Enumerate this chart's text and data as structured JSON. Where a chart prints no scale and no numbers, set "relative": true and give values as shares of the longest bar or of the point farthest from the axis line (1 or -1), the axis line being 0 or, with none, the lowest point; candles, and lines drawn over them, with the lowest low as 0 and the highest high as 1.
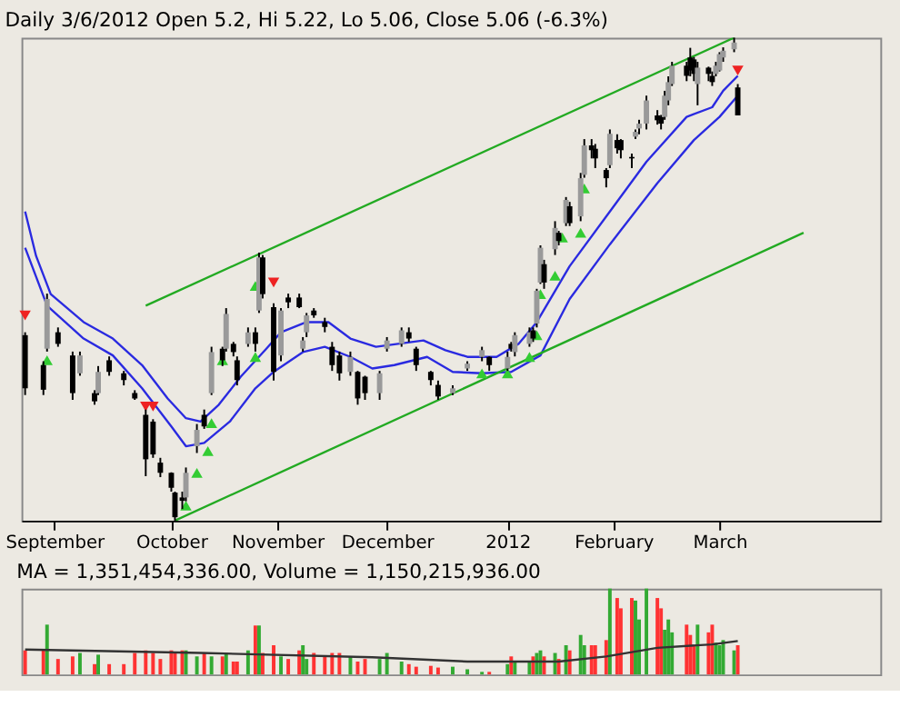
{
  "chart_data": [
    {
      "type": "candlestick",
      "title": "Daily 3/6/2012 Open 5.2, Hi 5.22, Lo 5.06, Close 5.06 (-6.3%)",
      "relative": true,
      "grid": false,
      "xlim": [
        "2011-08-23",
        "2012-04-14"
      ],
      "xticks": [
        {
          "value": "2011-09-01",
          "label": "September"
        },
        {
          "value": "2011-10-03",
          "label": "October"
        },
        {
          "value": "2011-11-01",
          "label": "November"
        },
        {
          "value": "2011-12-01",
          "label": "December"
        },
        {
          "value": "2012-01-03",
          "label": "2012"
        },
        {
          "value": "2012-02-01",
          "label": "February"
        },
        {
          "value": "2012-03-01",
          "label": "March"
        }
      ],
      "x": [
        "2011-08-24",
        "2011-08-29",
        "2011-08-30",
        "2011-09-02",
        "2011-09-06",
        "2011-09-08",
        "2011-09-12",
        "2011-09-13",
        "2011-09-16",
        "2011-09-20",
        "2011-09-23",
        "2011-09-26",
        "2011-09-28",
        "2011-09-30",
        "2011-10-03",
        "2011-10-04",
        "2011-10-06",
        "2011-10-07",
        "2011-10-10",
        "2011-10-12",
        "2011-10-14",
        "2011-10-17",
        "2011-10-18",
        "2011-10-20",
        "2011-10-21",
        "2011-10-24",
        "2011-10-26",
        "2011-10-27",
        "2011-10-28",
        "2011-10-31",
        "2011-11-02",
        "2011-11-04",
        "2011-11-07",
        "2011-11-08",
        "2011-11-09",
        "2011-11-11",
        "2011-11-14",
        "2011-11-16",
        "2011-11-18",
        "2011-11-21",
        "2011-11-23",
        "2011-11-25",
        "2011-11-29",
        "2011-12-01",
        "2011-12-05",
        "2011-12-07",
        "2011-12-09",
        "2011-12-13",
        "2011-12-15",
        "2011-12-19",
        "2011-12-23",
        "2011-12-27",
        "2011-12-29",
        "2012-01-03",
        "2012-01-04",
        "2012-01-05",
        "2012-01-09",
        "2012-01-10",
        "2012-01-11",
        "2012-01-12",
        "2012-01-13",
        "2012-01-16",
        "2012-01-17",
        "2012-01-19",
        "2012-01-20",
        "2012-01-23",
        "2012-01-24",
        "2012-01-26",
        "2012-01-27",
        "2012-01-30",
        "2012-01-31",
        "2012-02-02",
        "2012-02-03",
        "2012-02-06",
        "2012-02-07",
        "2012-02-08",
        "2012-02-10",
        "2012-02-13",
        "2012-02-14",
        "2012-02-15",
        "2012-02-16",
        "2012-02-17",
        "2012-02-21",
        "2012-02-22",
        "2012-02-23",
        "2012-02-24",
        "2012-02-27",
        "2012-02-28",
        "2012-02-29",
        "2012-03-01",
        "2012-03-02",
        "2012-03-05",
        "2012-03-06"
      ],
      "ohlc": [
        [
          0.384,
          0.39,
          0.26,
          0.274
        ],
        [
          0.322,
          0.33,
          0.26,
          0.271
        ],
        [
          0.356,
          0.47,
          0.35,
          0.459
        ],
        [
          0.39,
          0.4,
          0.36,
          0.366
        ],
        [
          0.342,
          0.35,
          0.25,
          0.264
        ],
        [
          0.305,
          0.35,
          0.3,
          0.342
        ],
        [
          0.264,
          0.27,
          0.24,
          0.247
        ],
        [
          0.264,
          0.32,
          0.26,
          0.308
        ],
        [
          0.332,
          0.34,
          0.3,
          0.308
        ],
        [
          0.305,
          0.31,
          0.28,
          0.291
        ],
        [
          0.264,
          0.27,
          0.25,
          0.253
        ],
        [
          0.219,
          0.23,
          0.092,
          0.127
        ],
        [
          0.205,
          0.21,
          0.13,
          0.137
        ],
        [
          0.12,
          0.13,
          0.09,
          0.099
        ],
        [
          0.099,
          0.1,
          0.06,
          0.068
        ],
        [
          0.058,
          0.06,
          0.0,
          0.007
        ],
        [
          0.048,
          0.06,
          0.024,
          0.041
        ],
        [
          0.048,
          0.11,
          0.04,
          0.099
        ],
        [
          0.154,
          0.2,
          0.14,
          0.188
        ],
        [
          0.219,
          0.23,
          0.19,
          0.195
        ],
        [
          0.264,
          0.36,
          0.26,
          0.349
        ],
        [
          0.356,
          0.36,
          0.32,
          0.332
        ],
        [
          0.356,
          0.44,
          0.35,
          0.428
        ],
        [
          0.366,
          0.37,
          0.34,
          0.349
        ],
        [
          0.332,
          0.34,
          0.28,
          0.291
        ],
        [
          0.366,
          0.4,
          0.36,
          0.39
        ],
        [
          0.39,
          0.4,
          0.35,
          0.366
        ],
        [
          0.435,
          0.555,
          0.43,
          0.545
        ],
        [
          0.545,
          0.55,
          0.46,
          0.469
        ],
        [
          0.442,
          0.45,
          0.29,
          0.308
        ],
        [
          0.342,
          0.44,
          0.33,
          0.435
        ],
        [
          0.462,
          0.47,
          0.44,
          0.452
        ],
        [
          0.462,
          0.47,
          0.44,
          0.442
        ],
        [
          0.356,
          0.38,
          0.35,
          0.373
        ],
        [
          0.39,
          0.43,
          0.38,
          0.425
        ],
        [
          0.435,
          0.44,
          0.42,
          0.425
        ],
        [
          0.411,
          0.42,
          0.39,
          0.401
        ],
        [
          0.36,
          0.37,
          0.31,
          0.322
        ],
        [
          0.342,
          0.35,
          0.29,
          0.305
        ],
        [
          0.308,
          0.35,
          0.3,
          0.339
        ],
        [
          0.308,
          0.31,
          0.24,
          0.253
        ],
        [
          0.298,
          0.3,
          0.25,
          0.264
        ],
        [
          0.264,
          0.31,
          0.25,
          0.305
        ],
        [
          0.356,
          0.38,
          0.35,
          0.373
        ],
        [
          0.366,
          0.4,
          0.36,
          0.394
        ],
        [
          0.39,
          0.4,
          0.37,
          0.377
        ],
        [
          0.356,
          0.36,
          0.31,
          0.322
        ],
        [
          0.308,
          0.31,
          0.28,
          0.291
        ],
        [
          0.281,
          0.29,
          0.25,
          0.257
        ],
        [
          0.264,
          0.28,
          0.26,
          0.274
        ],
        [
          0.315,
          0.33,
          0.31,
          0.325
        ],
        [
          0.339,
          0.36,
          0.33,
          0.353
        ],
        [
          0.339,
          0.34,
          0.31,
          0.322
        ],
        [
          0.315,
          0.35,
          0.31,
          0.339
        ],
        [
          0.366,
          0.37,
          0.35,
          0.356
        ],
        [
          0.349,
          0.39,
          0.34,
          0.384
        ],
        [
          0.366,
          0.4,
          0.36,
          0.39
        ],
        [
          0.394,
          0.4,
          0.37,
          0.377
        ],
        [
          0.408,
          0.48,
          0.4,
          0.476
        ],
        [
          0.493,
          0.57,
          0.49,
          0.565
        ],
        [
          0.531,
          0.54,
          0.48,
          0.493
        ],
        [
          0.562,
          0.62,
          0.55,
          0.606
        ],
        [
          0.596,
          0.6,
          0.57,
          0.579
        ],
        [
          0.616,
          0.67,
          0.61,
          0.664
        ],
        [
          0.651,
          0.66,
          0.61,
          0.616
        ],
        [
          0.63,
          0.72,
          0.62,
          0.709
        ],
        [
          0.716,
          0.79,
          0.71,
          0.777
        ],
        [
          0.777,
          0.79,
          0.75,
          0.767
        ],
        [
          0.77,
          0.78,
          0.73,
          0.75
        ],
        [
          0.726,
          0.73,
          0.69,
          0.709
        ],
        [
          0.736,
          0.81,
          0.73,
          0.801
        ],
        [
          0.788,
          0.8,
          0.76,
          0.771
        ],
        [
          0.788,
          0.79,
          0.75,
          0.767
        ],
        [
          0.753,
          0.76,
          0.73,
          0.75
        ],
        [
          0.795,
          0.81,
          0.79,
          0.805
        ],
        [
          0.812,
          0.83,
          0.8,
          0.822
        ],
        [
          0.822,
          0.88,
          0.81,
          0.87
        ],
        [
          0.839,
          0.85,
          0.82,
          0.829
        ],
        [
          0.836,
          0.84,
          0.81,
          0.822
        ],
        [
          0.836,
          0.89,
          0.83,
          0.88
        ],
        [
          0.87,
          0.92,
          0.86,
          0.908
        ],
        [
          0.904,
          0.95,
          0.9,
          0.942
        ],
        [
          0.942,
          0.95,
          0.91,
          0.921
        ],
        [
          0.959,
          0.979,
          0.92,
          0.932
        ],
        [
          0.955,
          0.96,
          0.91,
          0.925
        ],
        [
          0.904,
          0.95,
          0.86,
          0.938
        ],
        [
          0.938,
          0.94,
          0.91,
          0.925
        ],
        [
          0.921,
          0.93,
          0.9,
          0.908
        ],
        [
          0.925,
          0.95,
          0.92,
          0.942
        ],
        [
          0.932,
          0.97,
          0.93,
          0.966
        ],
        [
          0.959,
          0.98,
          0.95,
          0.973
        ],
        [
          0.976,
          1.0,
          0.97,
          0.99
        ],
        [
          0.897,
          0.904,
          0.839,
          0.839
        ]
      ],
      "series": [
        {
          "type": "line",
          "color": "#2a2ae0",
          "x": [
            "2011-08-24",
            "2011-08-27",
            "2011-08-31",
            "2011-09-09",
            "2011-09-17",
            "2011-09-25",
            "2011-10-02",
            "2011-10-07",
            "2011-10-11",
            "2011-10-16",
            "2011-10-22",
            "2011-10-29",
            "2011-11-02",
            "2011-11-09",
            "2011-11-15",
            "2011-11-21",
            "2011-11-28",
            "2011-12-04",
            "2011-12-11",
            "2011-12-17",
            "2011-12-23",
            "2011-12-31",
            "2012-01-06",
            "2012-01-11",
            "2012-01-20",
            "2012-01-31",
            "2012-02-10",
            "2012-02-21",
            "2012-02-28",
            "2012-03-02",
            "2012-03-06"
          ],
          "values": [
            0.64,
            0.548,
            0.469,
            0.411,
            0.377,
            0.322,
            0.253,
            0.212,
            0.205,
            0.24,
            0.298,
            0.356,
            0.39,
            0.411,
            0.411,
            0.377,
            0.36,
            0.366,
            0.373,
            0.353,
            0.339,
            0.339,
            0.366,
            0.411,
            0.527,
            0.64,
            0.743,
            0.836,
            0.856,
            0.89,
            0.921
          ]
        },
        {
          "type": "line",
          "color": "#2a2ae0",
          "x": [
            "2011-08-24",
            "2011-08-30",
            "2011-09-09",
            "2011-09-17",
            "2011-09-25",
            "2011-10-03",
            "2011-10-07",
            "2011-10-12",
            "2011-10-19",
            "2011-10-26",
            "2011-10-31",
            "2011-11-08",
            "2011-11-14",
            "2011-11-21",
            "2011-11-27",
            "2011-12-03",
            "2011-12-12",
            "2011-12-19",
            "2011-12-27",
            "2012-01-04",
            "2012-01-12",
            "2012-01-20",
            "2012-01-31",
            "2012-02-13",
            "2012-02-23",
            "2012-03-01",
            "2012-03-06"
          ],
          "values": [
            0.565,
            0.445,
            0.377,
            0.342,
            0.274,
            0.195,
            0.154,
            0.161,
            0.205,
            0.274,
            0.308,
            0.349,
            0.36,
            0.339,
            0.315,
            0.322,
            0.339,
            0.308,
            0.305,
            0.308,
            0.342,
            0.459,
            0.572,
            0.699,
            0.788,
            0.836,
            0.88
          ]
        },
        {
          "type": "line",
          "color": "#22aa22",
          "x": [
            "2011-09-26",
            "2012-03-05"
          ],
          "values": [
            0.445,
            1.0
          ]
        },
        {
          "type": "line",
          "color": "#22aa22",
          "x": [
            "2011-10-04",
            "2012-03-24"
          ],
          "values": [
            0.0,
            0.596
          ]
        },
        {
          "type": "scatter",
          "marker": "triangle",
          "color": "#33cc33",
          "x": [
            "2011-08-30",
            "2011-10-07",
            "2011-10-10",
            "2011-10-13",
            "2011-10-14",
            "2011-10-17",
            "2011-10-26",
            "2011-10-26",
            "2011-12-27",
            "2012-01-03",
            "2012-01-09",
            "2012-01-11",
            "2012-01-12",
            "2012-01-16",
            "2012-01-18",
            "2012-01-23",
            "2012-01-24"
          ],
          "values": [
            0.332,
            0.031,
            0.099,
            0.144,
            0.202,
            0.332,
            0.339,
            0.486,
            0.305,
            0.305,
            0.339,
            0.384,
            0.469,
            0.507,
            0.586,
            0.596,
            0.688
          ]
        },
        {
          "type": "scatter",
          "marker": "triangle-down",
          "color": "#ee2222",
          "x": [
            "2011-08-24",
            "2011-09-26",
            "2011-09-28",
            "2011-10-31",
            "2012-03-06"
          ],
          "values": [
            0.425,
            0.236,
            0.236,
            0.493,
            0.932
          ]
        }
      ]
    },
    {
      "type": "bar",
      "title": "MA = 1,351,454,336.00, Volume = 1,150,215,936.00",
      "relative": true,
      "tick_labels": false,
      "xlim": [
        "2011-08-23",
        "2012-04-14"
      ],
      "x": [
        "2011-08-24",
        "2011-08-29",
        "2011-08-30",
        "2011-09-02",
        "2011-09-06",
        "2011-09-08",
        "2011-09-12",
        "2011-09-13",
        "2011-09-16",
        "2011-09-20",
        "2011-09-23",
        "2011-09-26",
        "2011-09-28",
        "2011-09-30",
        "2011-10-03",
        "2011-10-04",
        "2011-10-06",
        "2011-10-07",
        "2011-10-10",
        "2011-10-12",
        "2011-10-14",
        "2011-10-17",
        "2011-10-18",
        "2011-10-20",
        "2011-10-21",
        "2011-10-24",
        "2011-10-26",
        "2011-10-27",
        "2011-10-28",
        "2011-10-31",
        "2011-11-02",
        "2011-11-04",
        "2011-11-07",
        "2011-11-08",
        "2011-11-09",
        "2011-11-11",
        "2011-11-14",
        "2011-11-16",
        "2011-11-18",
        "2011-11-21",
        "2011-11-23",
        "2011-11-25",
        "2011-11-29",
        "2011-12-01",
        "2011-12-05",
        "2011-12-07",
        "2011-12-09",
        "2011-12-13",
        "2011-12-15",
        "2011-12-19",
        "2011-12-23",
        "2011-12-27",
        "2011-12-29",
        "2012-01-03",
        "2012-01-04",
        "2012-01-05",
        "2012-01-09",
        "2012-01-10",
        "2012-01-11",
        "2012-01-12",
        "2012-01-13",
        "2012-01-16",
        "2012-01-17",
        "2012-01-19",
        "2012-01-20",
        "2012-01-23",
        "2012-01-24",
        "2012-01-26",
        "2012-01-27",
        "2012-01-30",
        "2012-01-31",
        "2012-02-02",
        "2012-02-03",
        "2012-02-06",
        "2012-02-07",
        "2012-02-08",
        "2012-02-10",
        "2012-02-13",
        "2012-02-14",
        "2012-02-15",
        "2012-02-16",
        "2012-02-17",
        "2012-02-21",
        "2012-02-22",
        "2012-02-23",
        "2012-02-24",
        "2012-02-27",
        "2012-02-28",
        "2012-02-29",
        "2012-03-01",
        "2012-03-02",
        "2012-03-05",
        "2012-03-06"
      ],
      "series": [
        {
          "type": "bar",
          "values": [
            0.28,
            0.28,
            0.58,
            0.18,
            0.21,
            0.25,
            0.12,
            0.23,
            0.12,
            0.12,
            0.25,
            0.28,
            0.25,
            0.18,
            0.28,
            0.25,
            0.28,
            0.28,
            0.21,
            0.25,
            0.21,
            0.21,
            0.25,
            0.15,
            0.15,
            0.28,
            0.57,
            0.57,
            0.25,
            0.34,
            0.21,
            0.18,
            0.28,
            0.34,
            0.18,
            0.25,
            0.21,
            0.25,
            0.25,
            0.21,
            0.15,
            0.18,
            0.18,
            0.25,
            0.15,
            0.12,
            0.09,
            0.1,
            0.08,
            0.09,
            0.06,
            0.03,
            0.03,
            0.12,
            0.21,
            0.15,
            0.15,
            0.21,
            0.25,
            0.28,
            0.21,
            0.25,
            0.18,
            0.34,
            0.28,
            0.46,
            0.34,
            0.34,
            0.34,
            0.4,
            1.0,
            0.89,
            0.77,
            0.89,
            0.86,
            0.64,
            1.0,
            0.89,
            0.77,
            0.52,
            0.64,
            0.49,
            0.58,
            0.46,
            0.34,
            0.58,
            0.49,
            0.58,
            0.37,
            0.34,
            0.4,
            0.28,
            0.34
          ],
          "colors": [
            "#ff3333",
            "#ff3333",
            "#33aa33",
            "#ff3333",
            "#ff3333",
            "#33aa33",
            "#ff3333",
            "#33aa33",
            "#ff3333",
            "#ff3333",
            "#ff3333",
            "#ff3333",
            "#ff3333",
            "#ff3333",
            "#ff3333",
            "#ff3333",
            "#ff3333",
            "#33aa33",
            "#33aa33",
            "#ff3333",
            "#33aa33",
            "#ff3333",
            "#33aa33",
            "#ff3333",
            "#ff3333",
            "#33aa33",
            "#ff3333",
            "#33aa33",
            "#ff3333",
            "#ff3333",
            "#33aa33",
            "#ff3333",
            "#ff3333",
            "#33aa33",
            "#33aa33",
            "#ff3333",
            "#ff3333",
            "#ff3333",
            "#ff3333",
            "#33aa33",
            "#ff3333",
            "#ff3333",
            "#33aa33",
            "#33aa33",
            "#33aa33",
            "#ff3333",
            "#ff3333",
            "#ff3333",
            "#ff3333",
            "#33aa33",
            "#33aa33",
            "#33aa33",
            "#ff3333",
            "#33aa33",
            "#ff3333",
            "#33aa33",
            "#33aa33",
            "#ff3333",
            "#33aa33",
            "#33aa33",
            "#ff3333",
            "#33aa33",
            "#ff3333",
            "#33aa33",
            "#ff3333",
            "#33aa33",
            "#33aa33",
            "#ff3333",
            "#ff3333",
            "#ff3333",
            "#33aa33",
            "#ff3333",
            "#ff3333",
            "#ff3333",
            "#33aa33",
            "#33aa33",
            "#33aa33",
            "#ff3333",
            "#ff3333",
            "#33aa33",
            "#33aa33",
            "#33aa33",
            "#ff3333",
            "#ff3333",
            "#ff3333",
            "#33aa33",
            "#ff3333",
            "#ff3333",
            "#33aa33",
            "#33aa33",
            "#33aa33",
            "#33aa33",
            "#ff3333"
          ]
        },
        {
          "type": "line",
          "color": "#333333",
          "x": [
            "2011-08-24",
            "2011-10-11",
            "2011-11-27",
            "2011-12-23",
            "2012-01-17",
            "2012-01-30",
            "2012-02-13",
            "2012-02-28",
            "2012-03-06"
          ],
          "values": [
            0.29,
            0.25,
            0.2,
            0.15,
            0.15,
            0.21,
            0.31,
            0.35,
            0.39
          ]
        }
      ]
    }
  ]
}
